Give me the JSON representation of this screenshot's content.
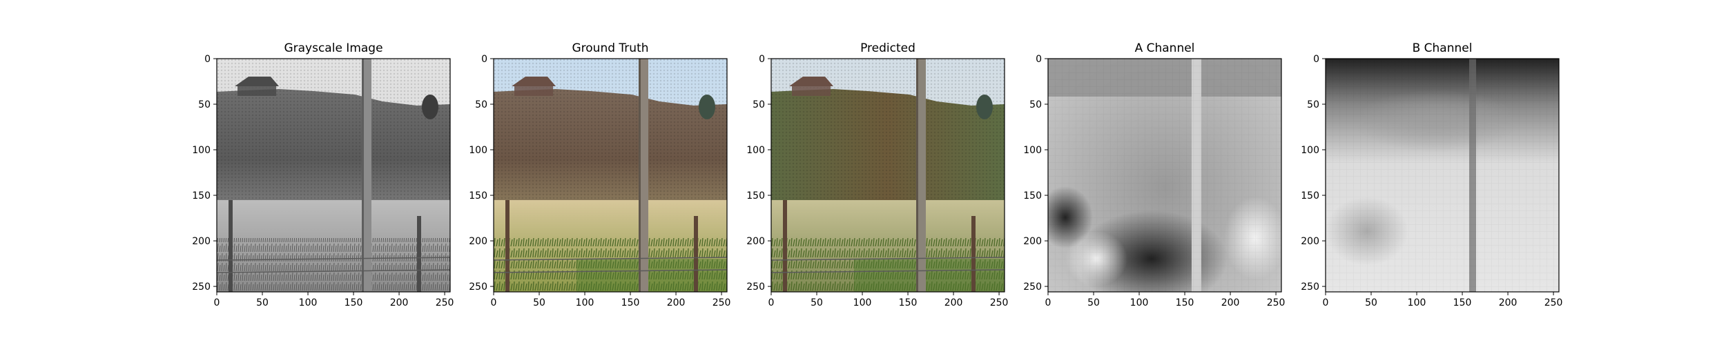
{
  "chart_data": [
    {
      "type": "image",
      "title": "Grayscale Image",
      "xticks": [
        0,
        50,
        100,
        150,
        200,
        250
      ],
      "yticks": [
        0,
        50,
        100,
        150,
        200,
        250
      ],
      "xlim": [
        0,
        256
      ],
      "ylim": [
        256,
        0
      ],
      "colormap": "gray"
    },
    {
      "type": "image",
      "title": "Ground Truth",
      "xticks": [
        0,
        50,
        100,
        150,
        200,
        250
      ],
      "yticks": [
        0,
        50,
        100,
        150,
        200,
        250
      ],
      "xlim": [
        0,
        256
      ],
      "ylim": [
        256,
        0
      ],
      "colormap": "rgb"
    },
    {
      "type": "image",
      "title": "Predicted",
      "xticks": [
        0,
        50,
        100,
        150,
        200,
        250
      ],
      "yticks": [
        0,
        50,
        100,
        150,
        200,
        250
      ],
      "xlim": [
        0,
        256
      ],
      "ylim": [
        256,
        0
      ],
      "colormap": "rgb"
    },
    {
      "type": "image",
      "title": "A Channel",
      "xticks": [
        0,
        50,
        100,
        150,
        200,
        250
      ],
      "yticks": [
        0,
        50,
        100,
        150,
        200,
        250
      ],
      "xlim": [
        0,
        256
      ],
      "ylim": [
        256,
        0
      ],
      "colormap": "gray"
    },
    {
      "type": "image",
      "title": "B Channel",
      "xticks": [
        0,
        50,
        100,
        150,
        200,
        250
      ],
      "yticks": [
        0,
        50,
        100,
        150,
        200,
        250
      ],
      "xlim": [
        0,
        256
      ],
      "ylim": [
        256,
        0
      ],
      "colormap": "gray"
    }
  ]
}
